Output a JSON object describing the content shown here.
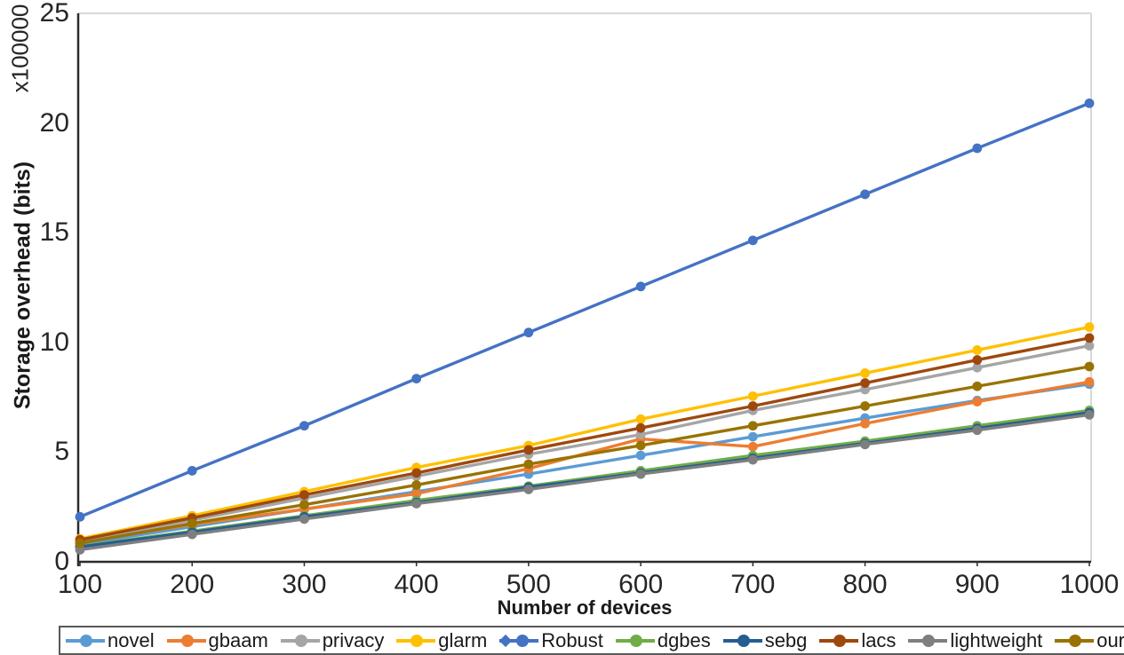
{
  "chart_data": {
    "type": "line",
    "title": "",
    "xlabel": "Number of devices",
    "ylabel": "Storage overhead (bits)",
    "y_multiplier_label": "x100000",
    "x": [
      100,
      200,
      300,
      400,
      500,
      600,
      700,
      800,
      900,
      1000
    ],
    "xlim": [
      100,
      1000
    ],
    "ylim": [
      0,
      25
    ],
    "yticks": [
      0,
      5,
      10,
      15,
      20,
      25
    ],
    "grid": false,
    "legend_position": "bottom",
    "series": [
      {
        "name": "novel",
        "color": "#5B9BD5",
        "marker": "circle",
        "values": [
          0.8,
          1.6,
          2.4,
          3.2,
          4.0,
          4.85,
          5.7,
          6.55,
          7.35,
          8.1
        ]
      },
      {
        "name": "gbaam",
        "color": "#ED7D31",
        "marker": "circle",
        "values": [
          0.9,
          1.7,
          2.4,
          3.1,
          4.25,
          5.6,
          5.25,
          6.3,
          7.3,
          8.2
        ]
      },
      {
        "name": "privacy",
        "color": "#A5A5A5",
        "marker": "circle",
        "values": [
          0.95,
          1.9,
          2.9,
          3.9,
          4.9,
          5.8,
          6.9,
          7.85,
          8.85,
          9.85
        ]
      },
      {
        "name": "glarm",
        "color": "#FFC000",
        "marker": "circle",
        "values": [
          1.05,
          2.1,
          3.2,
          4.3,
          5.3,
          6.5,
          7.55,
          8.6,
          9.65,
          10.7
        ]
      },
      {
        "name": "Robust",
        "color": "#4472C4",
        "marker": "circle",
        "legend_marker": "diamond-circle",
        "values": [
          2.05,
          4.15,
          6.2,
          8.35,
          10.45,
          12.55,
          14.65,
          16.75,
          18.85,
          20.9
        ]
      },
      {
        "name": "dgbes",
        "color": "#70AD47",
        "marker": "circle",
        "values": [
          0.7,
          1.4,
          2.1,
          2.8,
          3.45,
          4.15,
          4.85,
          5.5,
          6.2,
          6.9
        ]
      },
      {
        "name": "sebg",
        "color": "#255E91",
        "marker": "circle",
        "values": [
          0.68,
          1.35,
          2.05,
          2.7,
          3.4,
          4.05,
          4.72,
          5.4,
          6.08,
          6.8
        ]
      },
      {
        "name": "lacs",
        "color": "#9E480E",
        "marker": "circle",
        "values": [
          1.0,
          2.0,
          3.05,
          4.05,
          5.1,
          6.1,
          7.1,
          8.15,
          9.2,
          10.2
        ]
      },
      {
        "name": "lightweight",
        "color": "#7F7F7F",
        "marker": "circle",
        "values": [
          0.55,
          1.25,
          1.95,
          2.65,
          3.3,
          4.0,
          4.65,
          5.35,
          6.0,
          6.7
        ]
      },
      {
        "name": "our",
        "color": "#997300",
        "marker": "circle",
        "values": [
          0.85,
          1.75,
          2.6,
          3.5,
          4.45,
          5.3,
          6.2,
          7.1,
          8.0,
          8.9
        ]
      }
    ]
  },
  "colors": {
    "axis": "#2b2b2b",
    "plot_border": "#d9d9d9",
    "text": "#262626",
    "legend_border": "#595959",
    "background": "#ffffff"
  }
}
